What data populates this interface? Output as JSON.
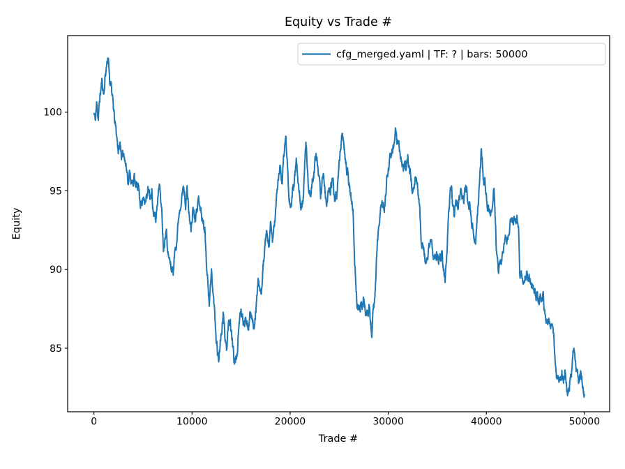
{
  "figure": {
    "title": "Equity vs Trade #",
    "xlabel": "Trade #",
    "ylabel": "Equity",
    "background": "#ffffff"
  },
  "legend": {
    "label": "cfg_merged.yaml | TF: ? | bars: 50000",
    "position": "upper right",
    "border_color": "#cccccc",
    "fill_color": "#ffffff"
  },
  "axes": {
    "xtick_labels": [
      "0",
      "10000",
      "20000",
      "30000",
      "40000",
      "50000"
    ],
    "ytick_labels": [
      "85",
      "90",
      "95",
      "100"
    ],
    "spine_color": "#000000"
  },
  "chart_data": {
    "type": "line",
    "title": "Equity vs Trade #",
    "xlabel": "Trade #",
    "ylabel": "Equity",
    "grid": false,
    "legend_position": "upper right",
    "xlim": [
      -2680,
      52570
    ],
    "ylim": [
      80.96,
      104.86
    ],
    "xticks": [
      0,
      10000,
      20000,
      30000,
      40000,
      50000
    ],
    "yticks": [
      85,
      90,
      95,
      100
    ],
    "noise": {
      "seed": 11,
      "step": 20,
      "decay": 0.9,
      "sigma": 0.5,
      "clamp": 0.7
    },
    "series": [
      {
        "name": "cfg_merged.yaml | TF: ? | bars: 50000",
        "color": "#1f77b4",
        "anchors": [
          [
            0,
            99.9
          ],
          [
            150,
            99.4
          ],
          [
            300,
            100.6
          ],
          [
            450,
            99.7
          ],
          [
            600,
            100.9
          ],
          [
            800,
            101.9
          ],
          [
            1000,
            101.2
          ],
          [
            1150,
            102.4
          ],
          [
            1300,
            103.1
          ],
          [
            1450,
            103.8
          ],
          [
            1600,
            101.7
          ],
          [
            1750,
            102.2
          ],
          [
            1900,
            100.8
          ],
          [
            2100,
            99.3
          ],
          [
            2300,
            98.4
          ],
          [
            2500,
            97.6
          ],
          [
            2700,
            97.9
          ],
          [
            2900,
            96.9
          ],
          [
            3100,
            97.5
          ],
          [
            3300,
            96.6
          ],
          [
            3500,
            95.9
          ],
          [
            3700,
            96.3
          ],
          [
            3900,
            95.4
          ],
          [
            4100,
            95.9
          ],
          [
            4300,
            94.9
          ],
          [
            4500,
            95.6
          ],
          [
            4700,
            94.6
          ],
          [
            4900,
            94.2
          ],
          [
            5100,
            95.0
          ],
          [
            5300,
            94.4
          ],
          [
            5500,
            95.1
          ],
          [
            5700,
            94.3
          ],
          [
            5900,
            94.8
          ],
          [
            6100,
            93.6
          ],
          [
            6300,
            92.9
          ],
          [
            6500,
            94.6
          ],
          [
            6650,
            96.0
          ],
          [
            6800,
            94.8
          ],
          [
            7100,
            91.6
          ],
          [
            7350,
            93.1
          ],
          [
            7600,
            91.0
          ],
          [
            7850,
            90.1
          ],
          [
            8080,
            90.0
          ],
          [
            8320,
            91.6
          ],
          [
            8500,
            92.6
          ],
          [
            8700,
            94.0
          ],
          [
            8900,
            94.8
          ],
          [
            9140,
            95.2
          ],
          [
            9350,
            94.3
          ],
          [
            9500,
            95.1
          ],
          [
            9700,
            93.4
          ],
          [
            9900,
            92.4
          ],
          [
            10100,
            94.0
          ],
          [
            10300,
            93.5
          ],
          [
            10500,
            94.4
          ],
          [
            10800,
            94.5
          ],
          [
            11000,
            93.4
          ],
          [
            11300,
            92.6
          ],
          [
            11500,
            90.5
          ],
          [
            11750,
            88.2
          ],
          [
            11980,
            89.8
          ],
          [
            12200,
            88.0
          ],
          [
            12450,
            86.0
          ],
          [
            12700,
            84.5
          ],
          [
            12900,
            85.6
          ],
          [
            13170,
            86.9
          ],
          [
            13400,
            85.6
          ],
          [
            13530,
            85.0
          ],
          [
            13700,
            86.0
          ],
          [
            13900,
            86.4
          ],
          [
            14100,
            85.3
          ],
          [
            14250,
            84.4
          ],
          [
            14480,
            84.2
          ],
          [
            14700,
            85.5
          ],
          [
            14950,
            87.3
          ],
          [
            15200,
            86.6
          ],
          [
            15500,
            87.4
          ],
          [
            15800,
            86.6
          ],
          [
            16100,
            87.2
          ],
          [
            16370,
            86.5
          ],
          [
            16600,
            88.3
          ],
          [
            16800,
            89.0
          ],
          [
            17000,
            88.0
          ],
          [
            17300,
            90.5
          ],
          [
            17600,
            91.8
          ],
          [
            17800,
            91.3
          ],
          [
            18000,
            92.4
          ],
          [
            18200,
            91.5
          ],
          [
            18500,
            93.5
          ],
          [
            18750,
            95.5
          ],
          [
            19000,
            96.5
          ],
          [
            19200,
            95.8
          ],
          [
            19400,
            97.3
          ],
          [
            19550,
            98.5
          ],
          [
            19700,
            96.8
          ],
          [
            19900,
            95.0
          ],
          [
            20100,
            94.3
          ],
          [
            20400,
            95.5
          ],
          [
            20630,
            96.6
          ],
          [
            20900,
            94.4
          ],
          [
            21100,
            93.9
          ],
          [
            21350,
            95.2
          ],
          [
            21600,
            98.0
          ],
          [
            21850,
            95.6
          ],
          [
            22100,
            94.6
          ],
          [
            22400,
            96.0
          ],
          [
            22650,
            97.8
          ],
          [
            22900,
            95.6
          ],
          [
            23100,
            94.5
          ],
          [
            23350,
            96.4
          ],
          [
            23600,
            94.6
          ],
          [
            23800,
            94.4
          ],
          [
            24100,
            95.0
          ],
          [
            24310,
            95.5
          ],
          [
            24550,
            94.3
          ],
          [
            24800,
            95.4
          ],
          [
            25050,
            97.0
          ],
          [
            25300,
            98.8
          ],
          [
            25600,
            97.2
          ],
          [
            25900,
            96.0
          ],
          [
            26100,
            95.2
          ],
          [
            26400,
            93.5
          ],
          [
            26600,
            90.5
          ],
          [
            26800,
            88.0
          ],
          [
            27000,
            87.0
          ],
          [
            27200,
            87.5
          ],
          [
            27500,
            88.3
          ],
          [
            27700,
            87.0
          ],
          [
            27900,
            86.6
          ],
          [
            28100,
            87.4
          ],
          [
            28330,
            86.0
          ],
          [
            28600,
            87.8
          ],
          [
            28800,
            90.5
          ],
          [
            29100,
            93.0
          ],
          [
            29350,
            94.3
          ],
          [
            29600,
            94.0
          ],
          [
            29900,
            95.8
          ],
          [
            30200,
            96.9
          ],
          [
            30500,
            97.8
          ],
          [
            30800,
            99.1
          ],
          [
            31000,
            98.2
          ],
          [
            31250,
            97.3
          ],
          [
            31500,
            96.9
          ],
          [
            31750,
            96.2
          ],
          [
            32000,
            96.6
          ],
          [
            32300,
            95.9
          ],
          [
            32600,
            95.2
          ],
          [
            32900,
            95.5
          ],
          [
            33150,
            94.0
          ],
          [
            33400,
            92.0
          ],
          [
            33650,
            91.0
          ],
          [
            33900,
            90.3
          ],
          [
            34150,
            91.0
          ],
          [
            34400,
            91.9
          ],
          [
            34650,
            91.0
          ],
          [
            34900,
            91.3
          ],
          [
            35150,
            90.6
          ],
          [
            35450,
            90.9
          ],
          [
            35800,
            89.4
          ],
          [
            36100,
            93.0
          ],
          [
            36450,
            95.3
          ],
          [
            36700,
            93.2
          ],
          [
            36900,
            94.3
          ],
          [
            37150,
            93.6
          ],
          [
            37400,
            94.8
          ],
          [
            37700,
            94.2
          ],
          [
            38000,
            95.4
          ],
          [
            38300,
            94.2
          ],
          [
            38600,
            93.0
          ],
          [
            38900,
            91.7
          ],
          [
            39200,
            94.5
          ],
          [
            39500,
            97.5
          ],
          [
            39750,
            95.5
          ],
          [
            40000,
            94.8
          ],
          [
            40250,
            94.0
          ],
          [
            40500,
            93.2
          ],
          [
            40790,
            94.7
          ],
          [
            41000,
            91.5
          ],
          [
            41250,
            89.4
          ],
          [
            41500,
            90.3
          ],
          [
            41800,
            91.9
          ],
          [
            42100,
            92.2
          ],
          [
            42400,
            92.9
          ],
          [
            42700,
            93.2
          ],
          [
            43000,
            93.1
          ],
          [
            43280,
            92.6
          ],
          [
            43420,
            89.9
          ],
          [
            43700,
            89.7
          ],
          [
            44000,
            89.9
          ],
          [
            44300,
            89.5
          ],
          [
            44600,
            89.3
          ],
          [
            44900,
            88.8
          ],
          [
            45200,
            88.4
          ],
          [
            45500,
            88.2
          ],
          [
            45800,
            87.9
          ],
          [
            46100,
            86.5
          ],
          [
            46400,
            86.2
          ],
          [
            46600,
            85.8
          ],
          [
            46800,
            85.9
          ],
          [
            47000,
            84.8
          ],
          [
            47200,
            83.5
          ],
          [
            47450,
            83.3
          ],
          [
            47700,
            82.9
          ],
          [
            47870,
            82.9
          ],
          [
            48000,
            83.4
          ],
          [
            48200,
            82.5
          ],
          [
            48450,
            82.2
          ],
          [
            48700,
            83.8
          ],
          [
            48930,
            85.0
          ],
          [
            49150,
            84.0
          ],
          [
            49300,
            83.0
          ],
          [
            49450,
            82.7
          ],
          [
            49600,
            83.3
          ],
          [
            49800,
            82.5
          ],
          [
            50000,
            82.0
          ]
        ]
      }
    ]
  }
}
